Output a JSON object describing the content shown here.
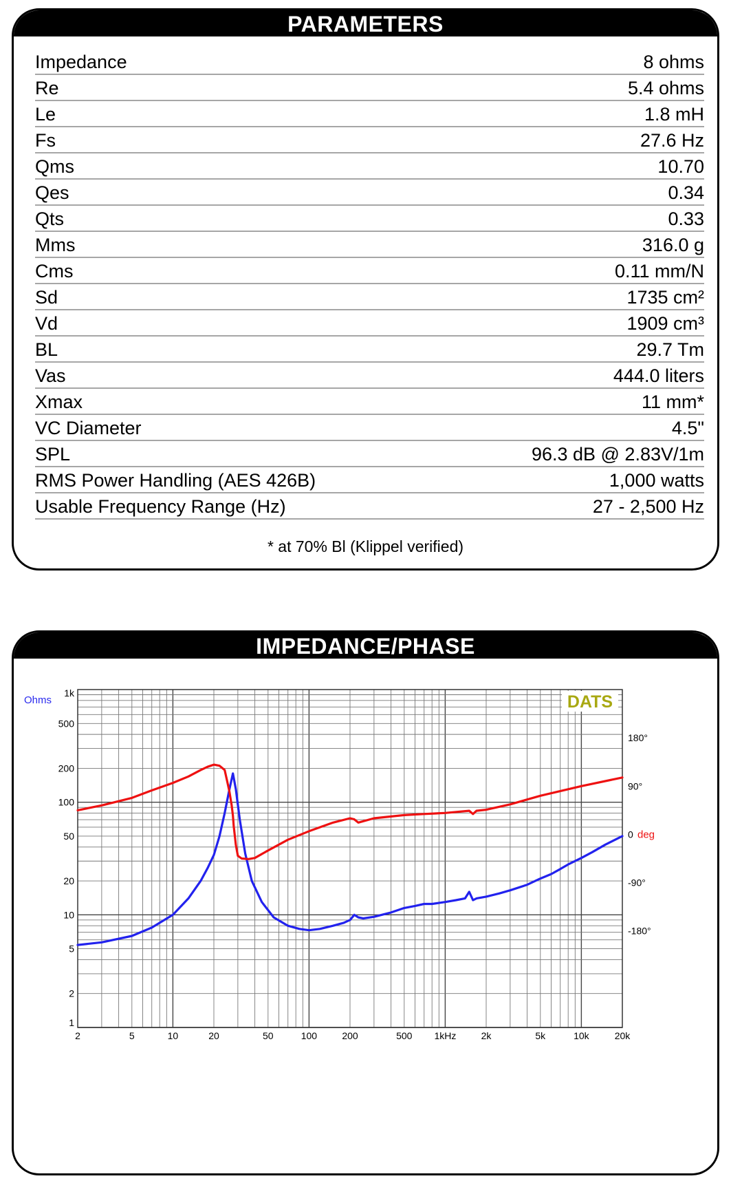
{
  "parameters": {
    "title": "PARAMETERS",
    "rows": [
      {
        "name": "Impedance",
        "value": "8 ohms"
      },
      {
        "name": "Re",
        "value": "5.4 ohms"
      },
      {
        "name": "Le",
        "value": "1.8 mH"
      },
      {
        "name": "Fs",
        "value": "27.6 Hz"
      },
      {
        "name": "Qms",
        "value": "10.70"
      },
      {
        "name": "Qes",
        "value": "0.34"
      },
      {
        "name": "Qts",
        "value": "0.33"
      },
      {
        "name": "Mms",
        "value": "316.0 g"
      },
      {
        "name": "Cms",
        "value": "0.11 mm/N"
      },
      {
        "name": "Sd",
        "value": "1735 cm²"
      },
      {
        "name": "Vd",
        "value": "1909 cm³"
      },
      {
        "name": "BL",
        "value": "29.7 Tm"
      },
      {
        "name": "Vas",
        "value": "444.0 liters"
      },
      {
        "name": "Xmax",
        "value": "11 mm*"
      },
      {
        "name": "VC Diameter",
        "value": "4.5\""
      },
      {
        "name": "SPL",
        "value": "96.3 dB @ 2.83V/1m"
      },
      {
        "name": "RMS Power Handling (AES 426B)",
        "value": "1,000 watts"
      },
      {
        "name": "Usable Frequency Range (Hz)",
        "value": "27 - 2,500 Hz"
      }
    ],
    "footnote": "* at 70% Bl (Klippel verified)"
  },
  "impedance_panel": {
    "title": "IMPEDANCE/PHASE"
  },
  "chart_data": {
    "type": "line",
    "x_scale": "log",
    "y_scale": "log",
    "xlim": [
      2,
      20000
    ],
    "ylim": [
      1,
      1000
    ],
    "y2lim": [
      -360,
      270
    ],
    "x_ticks": [
      {
        "value": 2,
        "label": "2"
      },
      {
        "value": 5,
        "label": "5"
      },
      {
        "value": 10,
        "label": "10"
      },
      {
        "value": 20,
        "label": "20"
      },
      {
        "value": 50,
        "label": "50"
      },
      {
        "value": 100,
        "label": "100"
      },
      {
        "value": 200,
        "label": "200"
      },
      {
        "value": 500,
        "label": "500"
      },
      {
        "value": 1000,
        "label": "1kHz"
      },
      {
        "value": 2000,
        "label": "2k"
      },
      {
        "value": 5000,
        "label": "5k"
      },
      {
        "value": 10000,
        "label": "10k"
      },
      {
        "value": 20000,
        "label": "20k"
      }
    ],
    "y_ticks": [
      {
        "value": 1,
        "label": "1"
      },
      {
        "value": 2,
        "label": "2"
      },
      {
        "value": 5,
        "label": "5"
      },
      {
        "value": 10,
        "label": "10"
      },
      {
        "value": 20,
        "label": "20"
      },
      {
        "value": 50,
        "label": "50"
      },
      {
        "value": 100,
        "label": "100"
      },
      {
        "value": 200,
        "label": "200"
      },
      {
        "value": 500,
        "label": "500"
      },
      {
        "value": 1000,
        "label": "1k"
      }
    ],
    "y2_ticks": [
      {
        "value": 180,
        "label": "180°"
      },
      {
        "value": 90,
        "label": "90°"
      },
      {
        "value": 0,
        "label": "0"
      },
      {
        "value": -90,
        "label": "-90°"
      },
      {
        "value": -180,
        "label": "-180°"
      }
    ],
    "y_unit_label": "Ohms",
    "y2_unit_label": "deg",
    "watermark": "DATS",
    "grid": true,
    "colors": {
      "impedance": "#2222ee",
      "phase": "#ee1111",
      "ohms_label": "#2a2aee",
      "deg_label": "#ee1111",
      "watermark": "#a8a812"
    },
    "series": [
      {
        "axis": "left",
        "color": "#2222ee",
        "x": [
          2,
          3,
          5,
          7,
          10,
          13,
          16,
          18,
          20,
          22,
          24,
          26,
          27.6,
          29,
          31,
          34,
          38,
          45,
          55,
          70,
          85,
          100,
          120,
          150,
          180,
          200,
          215,
          230,
          250,
          300,
          400,
          500,
          600,
          700,
          800,
          1000,
          1200,
          1400,
          1500,
          1600,
          1700,
          2000,
          2500,
          3000,
          4000,
          5000,
          6000,
          7000,
          8000,
          10000,
          12000,
          15000,
          20000
        ],
        "y": [
          5.4,
          5.7,
          6.5,
          7.7,
          10,
          14,
          20,
          26,
          34,
          50,
          80,
          130,
          180,
          130,
          70,
          35,
          20,
          13,
          9.5,
          8.0,
          7.5,
          7.3,
          7.5,
          8.0,
          8.5,
          9.0,
          10.0,
          9.5,
          9.3,
          9.6,
          10.5,
          11.5,
          12.0,
          12.5,
          12.5,
          13.0,
          13.5,
          14.0,
          16.0,
          13.5,
          14.0,
          14.5,
          15.5,
          16.5,
          18.5,
          21,
          23,
          25.5,
          28,
          32,
          36,
          42,
          50
        ]
      },
      {
        "axis": "right",
        "color": "#ee1111",
        "x": [
          2,
          3,
          5,
          7,
          10,
          13,
          16,
          18,
          20,
          22,
          24,
          25,
          26,
          27,
          27.6,
          28,
          29,
          30,
          32,
          36,
          40,
          50,
          70,
          100,
          150,
          200,
          215,
          230,
          300,
          500,
          700,
          1000,
          1500,
          1600,
          1700,
          2000,
          3000,
          5000,
          10000,
          20000
        ],
        "y": [
          45,
          54,
          68,
          82,
          96,
          108,
          120,
          126,
          130,
          128,
          120,
          100,
          80,
          55,
          35,
          15,
          -20,
          -40,
          -45,
          -46,
          -44,
          -30,
          -10,
          6,
          22,
          30,
          28,
          22,
          30,
          36,
          38,
          40,
          44,
          38,
          44,
          46,
          56,
          72,
          90,
          106
        ]
      }
    ]
  }
}
